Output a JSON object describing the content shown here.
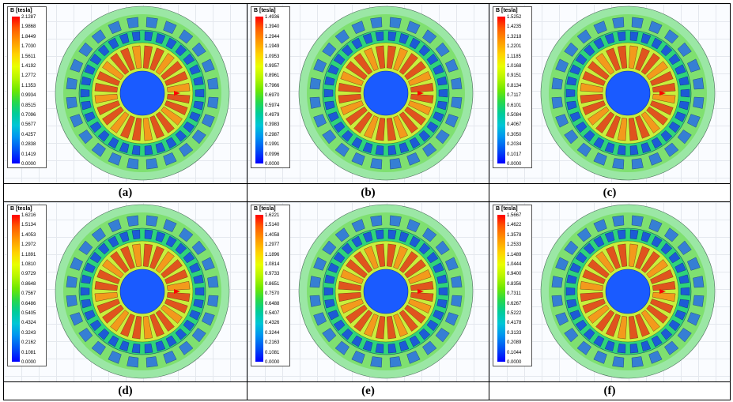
{
  "panels": [
    {
      "label": "(a)",
      "legend_title": "B [tesla]",
      "ticks": [
        "2.1287",
        "1.9868",
        "1.8449",
        "1.7030",
        "1.5611",
        "1.4192",
        "1.2772",
        "1.1353",
        "0.9934",
        "0.8515",
        "0.7096",
        "0.5677",
        "0.4257",
        "0.2838",
        "0.1419",
        "0.0000"
      ]
    },
    {
      "label": "(b)",
      "legend_title": "B [tesla]",
      "ticks": [
        "1.4936",
        "1.3940",
        "1.2944",
        "1.1949",
        "1.0953",
        "0.9957",
        "0.8961",
        "0.7966",
        "0.6970",
        "0.5974",
        "0.4979",
        "0.3983",
        "0.2987",
        "0.1991",
        "0.0996",
        "0.0000"
      ]
    },
    {
      "label": "(c)",
      "legend_title": "B [tesla]",
      "ticks": [
        "1.5252",
        "1.4235",
        "1.3218",
        "1.2201",
        "1.1185",
        "1.0168",
        "0.9151",
        "0.8134",
        "0.7117",
        "0.6101",
        "0.5084",
        "0.4067",
        "0.3050",
        "0.2034",
        "0.1017",
        "0.0000"
      ]
    },
    {
      "label": "(d)",
      "legend_title": "B [tesla]",
      "ticks": [
        "1.6216",
        "1.5134",
        "1.4053",
        "1.2972",
        "1.1891",
        "1.0810",
        "0.9729",
        "0.8648",
        "0.7567",
        "0.6486",
        "0.5405",
        "0.4324",
        "0.3243",
        "0.2162",
        "0.1081",
        "0.0000"
      ]
    },
    {
      "label": "(e)",
      "legend_title": "B [tesla]",
      "ticks": [
        "1.6221",
        "1.5140",
        "1.4058",
        "1.2977",
        "1.1896",
        "1.0814",
        "0.9733",
        "0.8651",
        "0.7570",
        "0.6488",
        "0.5407",
        "0.4326",
        "0.3244",
        "0.2163",
        "0.1081",
        "0.0000"
      ]
    },
    {
      "label": "(f)",
      "legend_title": "B [tesla]",
      "ticks": [
        "1.5667",
        "1.4622",
        "1.3578",
        "1.2533",
        "1.1489",
        "1.0444",
        "0.9400",
        "0.8356",
        "0.7311",
        "0.6267",
        "0.5222",
        "0.4178",
        "0.3133",
        "0.2089",
        "0.1044",
        "0.0000"
      ]
    }
  ],
  "colors": {
    "outer_ring": "#7fe070",
    "outer_edge": "#9be7a5",
    "outer_pm": "#2a6fe6",
    "middle_ring": "#2fd47a",
    "inner_pm": "#1a4fe0",
    "teeth_hot": "#e0541e",
    "teeth_warm": "#f39a1c",
    "inner_ring": "#c8ef3c",
    "shaft": "#1a5bff",
    "arrow": "#ff0000"
  }
}
